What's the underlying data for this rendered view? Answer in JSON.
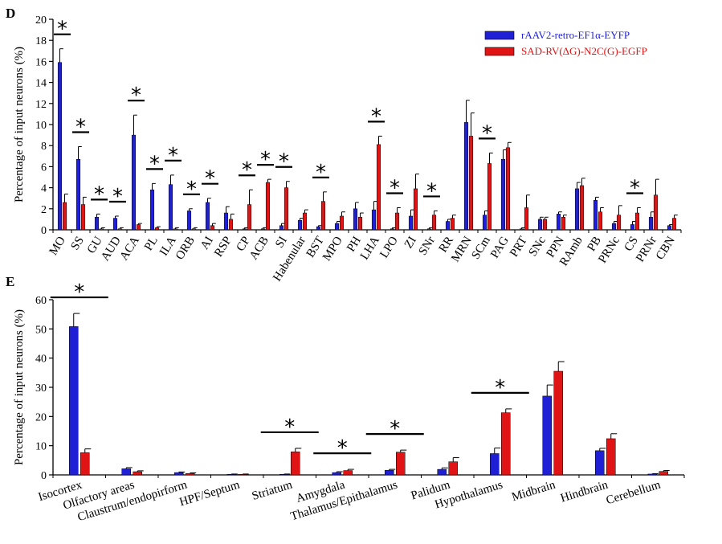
{
  "colors": {
    "series_1": "#1f1fd6",
    "series_2": "#e01414",
    "axis": "#000000"
  },
  "chart_data": [
    {
      "type": "bar",
      "panel": "D",
      "ylabel": "Percentage of input neurons (%)",
      "ylim": [
        0,
        20
      ],
      "yticks": [
        0,
        2,
        4,
        6,
        8,
        10,
        12,
        14,
        16,
        18,
        20
      ],
      "legend": "top-right",
      "significance_marker": "*",
      "categories": [
        "MO",
        "SS",
        "GU",
        "AUD",
        "ACA",
        "PL",
        "ILA",
        "ORB",
        "AI",
        "RSP",
        "CP",
        "ACB",
        "SI",
        "Habenular",
        "BST",
        "MPO",
        "PH",
        "LHA",
        "LPO",
        "ZI",
        "SNr",
        "RR",
        "MRN",
        "SCm",
        "PAG",
        "PRT",
        "SNc",
        "PPN",
        "RAmb",
        "PB",
        "PRNc",
        "CS",
        "PRNr",
        "CBN"
      ],
      "significant": [
        "MO",
        "SS",
        "GU",
        "AUD",
        "ACA",
        "PL",
        "ILA",
        "ORB",
        "AI",
        "CP",
        "ACB",
        "SI",
        "BST",
        "LHA",
        "LPO",
        "SNr",
        "SCm",
        "CS"
      ],
      "series": [
        {
          "name": "rAAV2-retro-EF1α-EYFP",
          "values": [
            15.9,
            6.7,
            1.2,
            1.1,
            9.0,
            3.8,
            4.3,
            1.8,
            2.6,
            1.6,
            0.1,
            0.1,
            0.4,
            0.9,
            0.3,
            0.6,
            2.0,
            1.9,
            0.1,
            1.3,
            0.1,
            0.8,
            10.2,
            1.4,
            6.7,
            0.1,
            1.0,
            1.5,
            3.9,
            2.8,
            0.6,
            0.5,
            1.2,
            0.4
          ],
          "errors": [
            1.3,
            1.2,
            0.3,
            0.2,
            1.9,
            0.6,
            0.9,
            0.2,
            0.4,
            0.6,
            0.1,
            0.1,
            0.2,
            0.2,
            0.1,
            0.2,
            0.6,
            0.8,
            0.1,
            0.6,
            0.1,
            0.2,
            2.1,
            0.4,
            0.9,
            0.1,
            0.2,
            0.2,
            0.6,
            0.3,
            0.2,
            0.3,
            0.5,
            0.1
          ]
        },
        {
          "name": "SAD-RV(ΔG)-N2C(G)-EGFP",
          "values": [
            2.6,
            2.4,
            0.1,
            0.1,
            0.5,
            0.2,
            0.1,
            0.1,
            0.4,
            1.0,
            2.4,
            4.5,
            4.0,
            1.6,
            2.7,
            1.3,
            1.2,
            8.1,
            1.6,
            3.9,
            1.4,
            1.1,
            8.9,
            6.3,
            7.8,
            2.1,
            1.0,
            1.2,
            4.2,
            1.7,
            1.4,
            1.6,
            3.3,
            1.1
          ],
          "errors": [
            0.8,
            0.7,
            0.1,
            0.1,
            0.1,
            0.1,
            0.1,
            0.1,
            0.2,
            0.5,
            1.4,
            0.3,
            0.6,
            0.3,
            0.9,
            0.4,
            0.4,
            0.8,
            0.5,
            1.4,
            0.4,
            0.3,
            2.2,
            1.0,
            0.5,
            1.2,
            0.2,
            0.2,
            0.7,
            0.4,
            0.9,
            0.5,
            1.5,
            0.3
          ]
        }
      ]
    },
    {
      "type": "bar",
      "panel": "E",
      "ylabel": "Percentage of input neurons (%)",
      "ylim": [
        0,
        60
      ],
      "yticks": [
        0,
        10,
        20,
        30,
        40,
        50,
        60
      ],
      "significance_marker": "*",
      "categories": [
        "Isocortex",
        "Olfactory areas",
        "Claustrum/endopirform",
        "HPF/Septum",
        "Striatum",
        "Amygdala",
        "Thalamus/Epithalamus",
        "Palidum",
        "Hypothalamus",
        "Midbrain",
        "Hindbrain",
        "Cerebellum"
      ],
      "significant": [
        "Isocortex",
        "Striatum",
        "Amygdala",
        "Thalamus/Epithalamus",
        "Hypothalamus"
      ],
      "series": [
        {
          "name": "rAAV2-retro-EF1α-EYFP",
          "values": [
            50.8,
            2.1,
            0.8,
            0.2,
            0.2,
            0.8,
            1.6,
            1.9,
            7.3,
            27.0,
            8.3,
            0.3
          ],
          "errors": [
            4.5,
            0.4,
            0.2,
            0.1,
            0.1,
            0.3,
            0.3,
            0.5,
            1.9,
            3.8,
            0.8,
            0.1
          ]
        },
        {
          "name": "SAD-RV(ΔG)-N2C(G)-EGFP",
          "values": [
            7.6,
            1.1,
            0.5,
            0.2,
            7.9,
            1.5,
            7.8,
            4.5,
            21.3,
            35.5,
            12.4,
            1.2
          ],
          "errors": [
            1.3,
            0.3,
            0.2,
            0.1,
            1.2,
            0.4,
            0.7,
            1.4,
            1.3,
            3.3,
            1.7,
            0.3
          ]
        }
      ]
    }
  ]
}
